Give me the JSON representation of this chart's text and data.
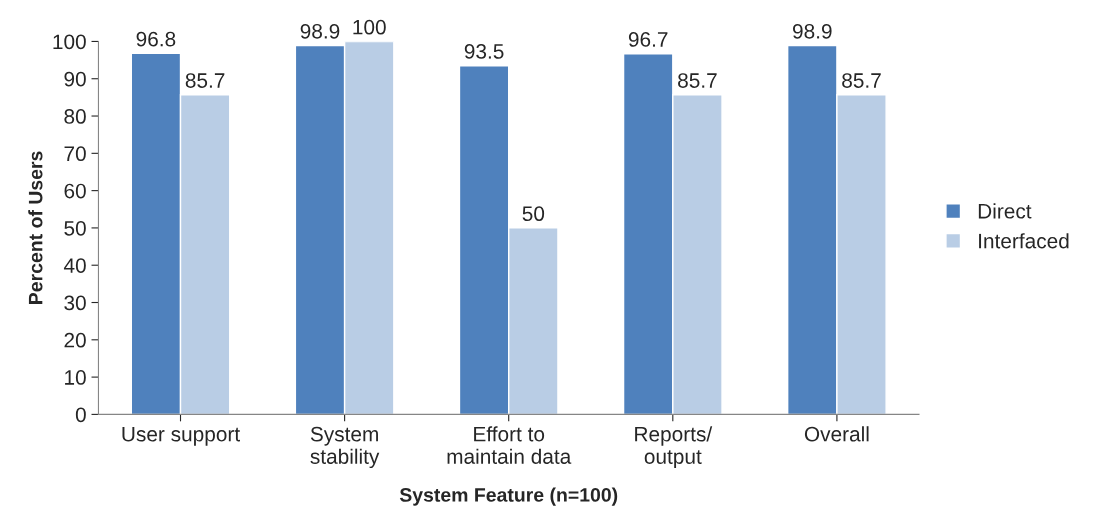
{
  "chart_data": {
    "type": "bar",
    "categories": [
      "User support",
      "System\nstability",
      "Effort to\nmaintain data",
      "Reports/\noutput",
      "Overall"
    ],
    "series": [
      {
        "name": "Direct",
        "color": "#4f81bd",
        "values": [
          96.8,
          98.9,
          93.5,
          96.7,
          98.9
        ]
      },
      {
        "name": "Interfaced",
        "color": "#b9cde5",
        "values": [
          85.7,
          100,
          50,
          85.7,
          85.7
        ]
      }
    ],
    "xlabel": "System Feature (n=100)",
    "ylabel": "Percent of Users",
    "ylim": [
      0,
      100
    ],
    "yticks": [
      0,
      10,
      20,
      30,
      40,
      50,
      60,
      70,
      80,
      90,
      100
    ],
    "data_labels": true,
    "grid": false,
    "legend": "right"
  }
}
